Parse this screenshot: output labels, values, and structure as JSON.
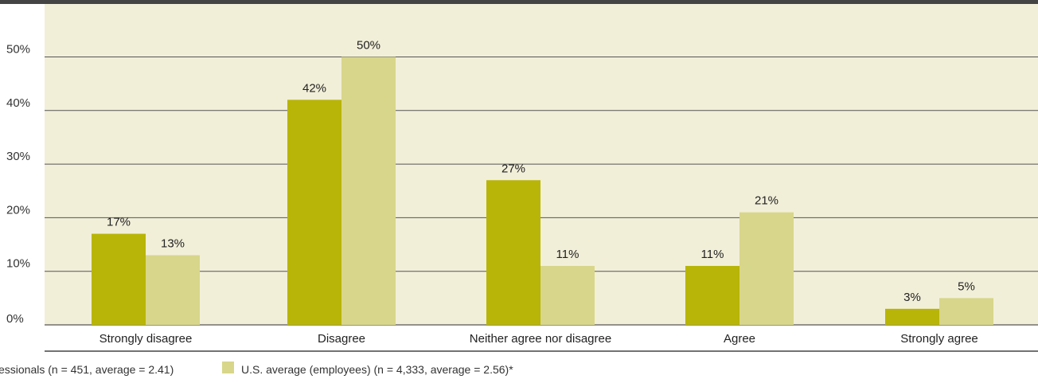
{
  "chart_data": {
    "type": "bar",
    "categories": [
      "Strongly disagree",
      "Disagree",
      "Neither agree nor disagree",
      "Agree",
      "Strongly agree"
    ],
    "series": [
      {
        "name": "…essionals (n = 451, average = 2.41)",
        "values": [
          17,
          42,
          27,
          11,
          3
        ],
        "color": "#b8b508"
      },
      {
        "name": "U.S. average (employees) (n = 4,333, average = 2.56)*",
        "values": [
          13,
          50,
          11,
          21,
          5
        ],
        "color": "#d8d68a"
      }
    ],
    "value_labels": [
      [
        "17%",
        "42%",
        "27%",
        "11%",
        "3%"
      ],
      [
        "13%",
        "50%",
        "11%",
        "21%",
        "5%"
      ]
    ],
    "y_ticks": [
      0,
      10,
      20,
      30,
      40,
      50
    ],
    "y_tick_labels": [
      "0%",
      "10%",
      "20%",
      "30%",
      "40%",
      "50%"
    ],
    "ylim": [
      0,
      50
    ],
    "grid": true,
    "legend_position": "bottom",
    "colors": {
      "plot_background": "#f2efd9",
      "grid": "#555555",
      "frame": "#444444"
    }
  }
}
